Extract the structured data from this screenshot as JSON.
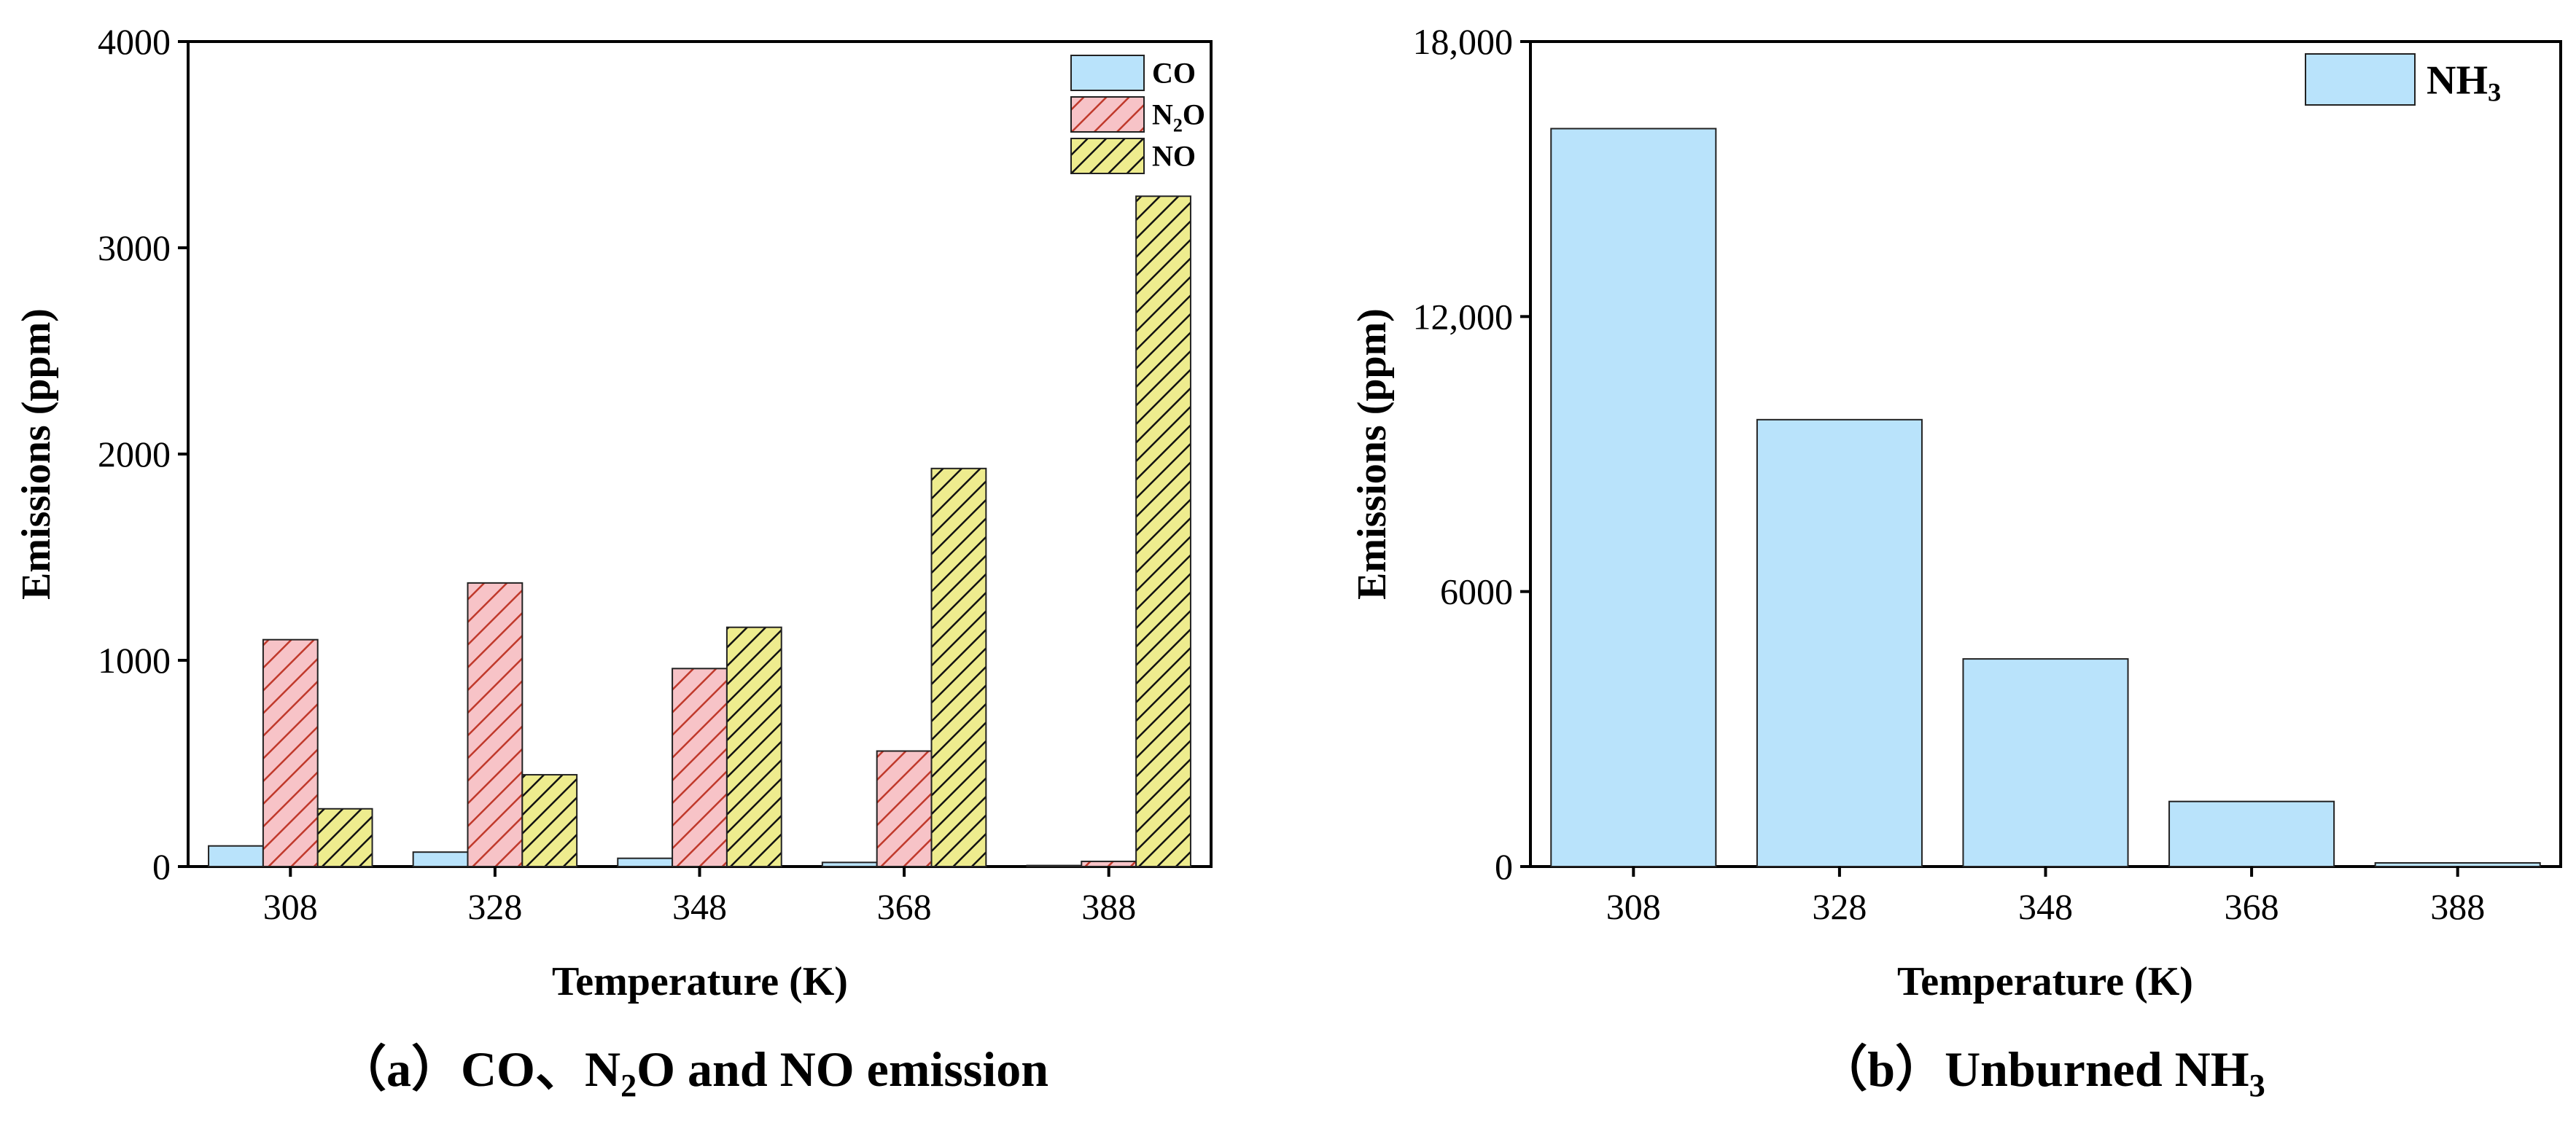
{
  "chart_data": [
    {
      "type": "bar",
      "caption_prefix": "（a）",
      "caption_main": "CO、N",
      "caption_sub": "2",
      "caption_rest": "O and NO emission",
      "xlabel": "Temperature (K)",
      "ylabel": "Emissions (ppm)",
      "categories": [
        "308",
        "328",
        "348",
        "368",
        "388"
      ],
      "ylim": [
        0,
        4000
      ],
      "yticks": [
        0,
        1000,
        2000,
        3000,
        4000
      ],
      "ytick_labels": [
        "0",
        "1000",
        "2000",
        "3000",
        "4000"
      ],
      "legend_position": "top-right",
      "series": [
        {
          "name": "CO",
          "name_main": "CO",
          "name_sub": "",
          "name_rest": "",
          "color": "#b9e3fb",
          "pattern": "none",
          "values": [
            100,
            70,
            40,
            20,
            5
          ]
        },
        {
          "name": "N2O",
          "name_main": "N",
          "name_sub": "2",
          "name_rest": "O",
          "color": "#f7c3c7",
          "pattern": "hatch-red",
          "values": [
            1100,
            1375,
            960,
            560,
            25
          ]
        },
        {
          "name": "NO",
          "name_main": "NO",
          "name_sub": "",
          "name_rest": "",
          "color": "#eeec8e",
          "pattern": "hatch-black",
          "values": [
            280,
            445,
            1160,
            1930,
            3250
          ]
        }
      ]
    },
    {
      "type": "bar",
      "caption_prefix": "（b）",
      "caption_main": "Unburned NH",
      "caption_sub": "3",
      "caption_rest": "",
      "xlabel": "Temperature (K)",
      "ylabel": "Emissions (ppm)",
      "categories": [
        "308",
        "328",
        "348",
        "368",
        "388"
      ],
      "ylim": [
        0,
        18000
      ],
      "yticks": [
        0,
        6000,
        12000,
        18000
      ],
      "ytick_labels": [
        "0",
        "6000",
        "12,000",
        "18,000"
      ],
      "legend_position": "top-right",
      "series": [
        {
          "name": "NH3",
          "name_main": "NH",
          "name_sub": "3",
          "name_rest": "",
          "color": "#b9e3fb",
          "pattern": "none",
          "values": [
            16100,
            9750,
            4530,
            1420,
            80
          ]
        }
      ]
    }
  ]
}
